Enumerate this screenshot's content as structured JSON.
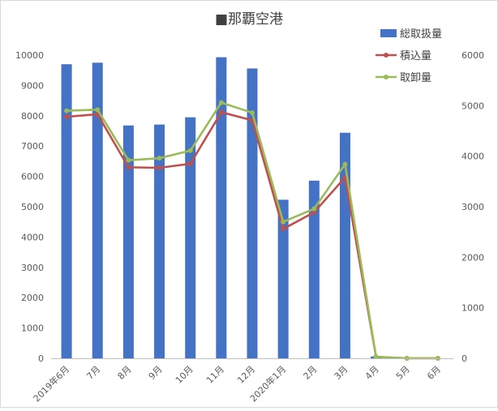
{
  "chart_data": {
    "type": "bar+line",
    "title": "■那覇空港",
    "categories": [
      "2019年6月",
      "7月",
      "8月",
      "9月",
      "10月",
      "11月",
      "12月",
      "2020年1月",
      "2月",
      "3月",
      "4月",
      "5月",
      "6月"
    ],
    "y_left": {
      "ylim": [
        0,
        10000
      ],
      "ticks": [
        0,
        1000,
        2000,
        3000,
        4000,
        5000,
        6000,
        7000,
        8000,
        9000,
        10000
      ]
    },
    "y_right": {
      "ylim": [
        0,
        6000
      ],
      "ticks": [
        0,
        1000,
        2000,
        3000,
        4000,
        5000,
        6000
      ]
    },
    "grid": false,
    "legend_position": "top-right",
    "series": [
      {
        "name": "総取扱量",
        "type": "bar",
        "axis": "left",
        "color": "#4472c4",
        "values": [
          9700,
          9750,
          7680,
          7710,
          7950,
          9930,
          9560,
          5230,
          5860,
          7440,
          60,
          0,
          0
        ]
      },
      {
        "name": "積込量",
        "type": "line",
        "axis": "right",
        "color": "#c0504d",
        "values": [
          4780,
          4830,
          3780,
          3770,
          3850,
          4870,
          4710,
          2560,
          2890,
          3580,
          30,
          0,
          0
        ]
      },
      {
        "name": "取卸量",
        "type": "line",
        "axis": "right",
        "color": "#9bbb59",
        "values": [
          4900,
          4920,
          3920,
          3960,
          4110,
          5060,
          4860,
          2700,
          2960,
          3840,
          30,
          0,
          0
        ]
      }
    ]
  }
}
